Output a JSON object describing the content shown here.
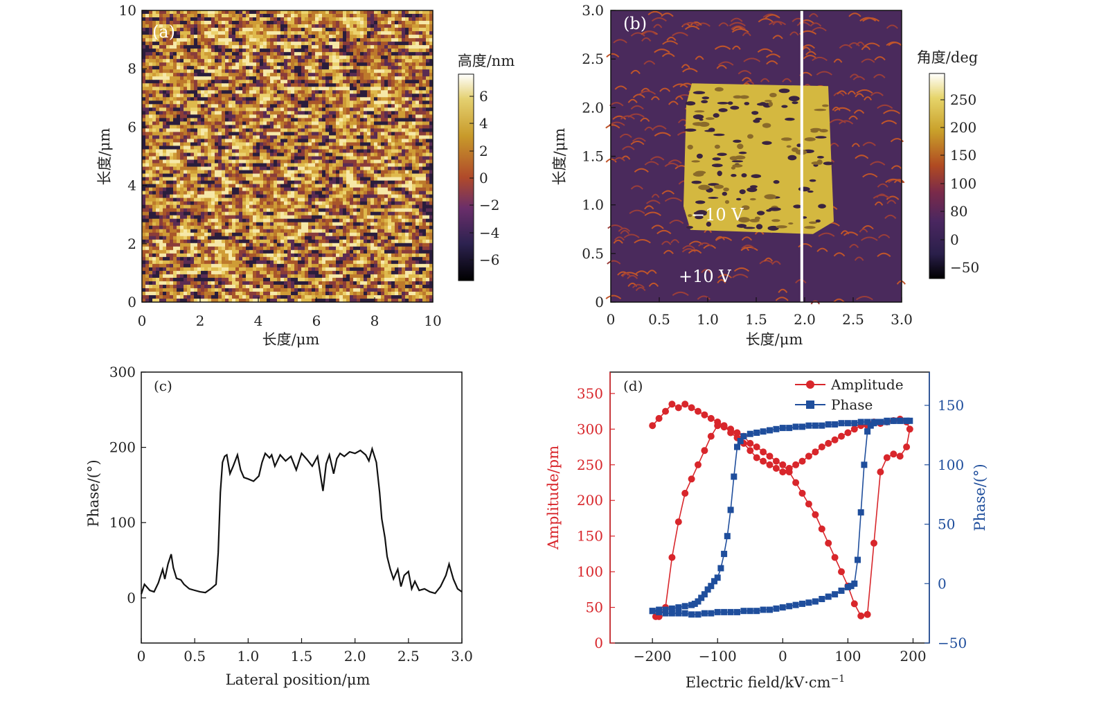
{
  "chart_data": [
    {
      "panel": "(a)",
      "type": "heatmap",
      "xlabel": "长度/μm",
      "ylabel": "长度/μm",
      "xticks": [
        "0",
        "2",
        "4",
        "6",
        "8",
        "10"
      ],
      "yticks": [
        "0",
        "2",
        "4",
        "6",
        "8",
        "10"
      ],
      "xlim": [
        0,
        10
      ],
      "ylim": [
        0,
        10
      ],
      "colorbar_title": "高度/nm",
      "colorbar_ticks": [
        "6",
        "4",
        "2",
        "0",
        "−2",
        "−4",
        "−6"
      ],
      "colorbar_range": [
        -8,
        8
      ]
    },
    {
      "panel": "(b)",
      "type": "heatmap",
      "xlabel": "长度/μm",
      "ylabel": "长度/μm",
      "xticks": [
        "0",
        "0.5",
        "1.0",
        "1.5",
        "2.0",
        "2.5",
        "3.0"
      ],
      "yticks": [
        "0",
        "0.5",
        "1.0",
        "1.5",
        "2.0",
        "2.5",
        "3.0"
      ],
      "xlim": [
        0,
        3
      ],
      "ylim": [
        0,
        3
      ],
      "colorbar_title": "角度/deg",
      "colorbar_ticks": [
        "250",
        "200",
        "150",
        "100",
        "80",
        "0",
        "−50"
      ],
      "annotations": [
        "−10 V",
        "+10 V"
      ],
      "switched_region": {
        "x": [
          0.75,
          2.3
        ],
        "y": [
          0.7,
          2.25
        ]
      },
      "line_profile_x": 1.97
    },
    {
      "panel": "(c)",
      "type": "line",
      "xlabel": "Lateral position/μm",
      "ylabel": "Phase/(°)",
      "xticks": [
        "0",
        "0.5",
        "1.0",
        "1.5",
        "2.0",
        "2.5",
        "3.0"
      ],
      "yticks": [
        "0",
        "100",
        "200",
        "300"
      ],
      "xlim": [
        0,
        3
      ],
      "ylim": [
        -60,
        300
      ],
      "x": [
        0,
        0.03,
        0.08,
        0.12,
        0.16,
        0.2,
        0.22,
        0.25,
        0.28,
        0.3,
        0.33,
        0.37,
        0.4,
        0.45,
        0.5,
        0.55,
        0.6,
        0.65,
        0.7,
        0.72,
        0.74,
        0.76,
        0.78,
        0.8,
        0.83,
        0.86,
        0.9,
        0.93,
        0.96,
        1.0,
        1.05,
        1.1,
        1.13,
        1.16,
        1.2,
        1.22,
        1.25,
        1.3,
        1.35,
        1.4,
        1.45,
        1.5,
        1.55,
        1.6,
        1.65,
        1.68,
        1.7,
        1.73,
        1.76,
        1.8,
        1.83,
        1.86,
        1.9,
        1.95,
        2.0,
        2.05,
        2.1,
        2.13,
        2.16,
        2.2,
        2.23,
        2.25,
        2.28,
        2.3,
        2.33,
        2.36,
        2.4,
        2.43,
        2.46,
        2.5,
        2.53,
        2.56,
        2.6,
        2.65,
        2.7,
        2.75,
        2.8,
        2.85,
        2.88,
        2.92,
        2.96,
        3.0
      ],
      "y": [
        5,
        18,
        10,
        8,
        20,
        38,
        25,
        45,
        58,
        40,
        26,
        24,
        18,
        12,
        10,
        8,
        7,
        12,
        18,
        60,
        140,
        180,
        188,
        190,
        165,
        175,
        190,
        170,
        160,
        158,
        155,
        162,
        180,
        192,
        186,
        190,
        175,
        190,
        182,
        188,
        170,
        192,
        184,
        175,
        188,
        160,
        142,
        178,
        190,
        165,
        185,
        192,
        188,
        194,
        192,
        196,
        190,
        182,
        198,
        180,
        140,
        105,
        80,
        55,
        38,
        25,
        38,
        15,
        30,
        35,
        12,
        22,
        10,
        12,
        8,
        6,
        15,
        30,
        45,
        25,
        12,
        8
      ]
    },
    {
      "panel": "(d)",
      "type": "line",
      "xlabel": "Electric field/kV·cm",
      "xlabel_sup": "−1",
      "ylabel": "Amplitude/pm",
      "ylabel_right": "Phase/(°)",
      "xticks": [
        "−200",
        "−100",
        "0",
        "100",
        "200"
      ],
      "yticks": [
        "0",
        "50",
        "100",
        "150",
        "200",
        "250",
        "300",
        "350"
      ],
      "yticks_right": [
        "−50",
        "0",
        "50",
        "100",
        "150"
      ],
      "xlim": [
        -265,
        225
      ],
      "ylim": [
        0,
        380
      ],
      "ylim_right": [
        -50,
        178
      ],
      "colors": {
        "amplitude": "#d8262b",
        "phase": "#1f4e9c"
      },
      "series": [
        {
          "name": "Amplitude",
          "axis": "left",
          "x": [
            -200,
            -190,
            -180,
            -170,
            -160,
            -150,
            -140,
            -130,
            -120,
            -110,
            -100,
            -90,
            -80,
            -70,
            -60,
            -50,
            -40,
            -30,
            -20,
            -10,
            0,
            10,
            20,
            30,
            40,
            50,
            60,
            70,
            80,
            90,
            100,
            110,
            120,
            130,
            140,
            150,
            160,
            170,
            180,
            190,
            195,
            190,
            180,
            170,
            160,
            150,
            140,
            130,
            120,
            110,
            100,
            90,
            80,
            70,
            60,
            50,
            40,
            30,
            20,
            10,
            0,
            -10,
            -20,
            -30,
            -40,
            -50,
            -60,
            -70,
            -80,
            -90,
            -100,
            -110,
            -120,
            -130,
            -140,
            -150,
            -160,
            -170,
            -180,
            -190,
            -195
          ],
          "y": [
            305,
            315,
            325,
            335,
            330,
            335,
            330,
            325,
            320,
            315,
            310,
            305,
            295,
            288,
            280,
            270,
            260,
            255,
            250,
            245,
            240,
            245,
            250,
            255,
            262,
            268,
            275,
            280,
            285,
            290,
            295,
            300,
            305,
            305,
            310,
            308,
            310,
            312,
            314,
            310,
            300,
            275,
            262,
            265,
            260,
            240,
            140,
            40,
            38,
            55,
            80,
            100,
            120,
            140,
            160,
            180,
            195,
            210,
            225,
            240,
            250,
            255,
            262,
            268,
            275,
            280,
            290,
            295,
            300,
            303,
            305,
            290,
            270,
            250,
            230,
            210,
            170,
            120,
            50,
            37,
            37
          ]
        },
        {
          "name": "Phase",
          "axis": "right",
          "x": [
            -200,
            -190,
            -180,
            -170,
            -160,
            -150,
            -140,
            -130,
            -120,
            -110,
            -100,
            -90,
            -80,
            -70,
            -60,
            -50,
            -40,
            -30,
            -20,
            -10,
            0,
            10,
            20,
            30,
            40,
            50,
            60,
            70,
            80,
            90,
            100,
            105,
            110,
            115,
            120,
            125,
            130,
            135,
            140,
            145,
            150,
            160,
            170,
            180,
            190,
            195,
            190,
            180,
            170,
            160,
            150,
            140,
            130,
            120,
            110,
            100,
            90,
            80,
            70,
            60,
            50,
            40,
            30,
            20,
            10,
            0,
            -10,
            -20,
            -30,
            -40,
            -50,
            -60,
            -65,
            -70,
            -75,
            -80,
            -85,
            -90,
            -95,
            -100,
            -105,
            -110,
            -115,
            -120,
            -125,
            -130,
            -135,
            -140,
            -150,
            -160,
            -170,
            -180,
            -190,
            -200
          ],
          "y": [
            -23,
            -24,
            -25,
            -25,
            -25,
            -25,
            -26,
            -26,
            -25,
            -25,
            -24,
            -24,
            -24,
            -24,
            -23,
            -23,
            -23,
            -22,
            -22,
            -21,
            -20,
            -19,
            -18,
            -17,
            -16,
            -15,
            -13,
            -11,
            -9,
            -6,
            -3,
            -2,
            0,
            20,
            60,
            100,
            128,
            133,
            135,
            136,
            136,
            137,
            137,
            137,
            137,
            137,
            137,
            137,
            137,
            136,
            136,
            136,
            136,
            136,
            135,
            135,
            135,
            134,
            134,
            133,
            133,
            133,
            132,
            132,
            131,
            131,
            130,
            129,
            128,
            127,
            126,
            124,
            120,
            115,
            90,
            62,
            40,
            25,
            13,
            5,
            2,
            -2,
            -5,
            -9,
            -12,
            -15,
            -17,
            -18,
            -19,
            -20,
            -21,
            -22,
            -22,
            -23
          ]
        }
      ]
    }
  ]
}
